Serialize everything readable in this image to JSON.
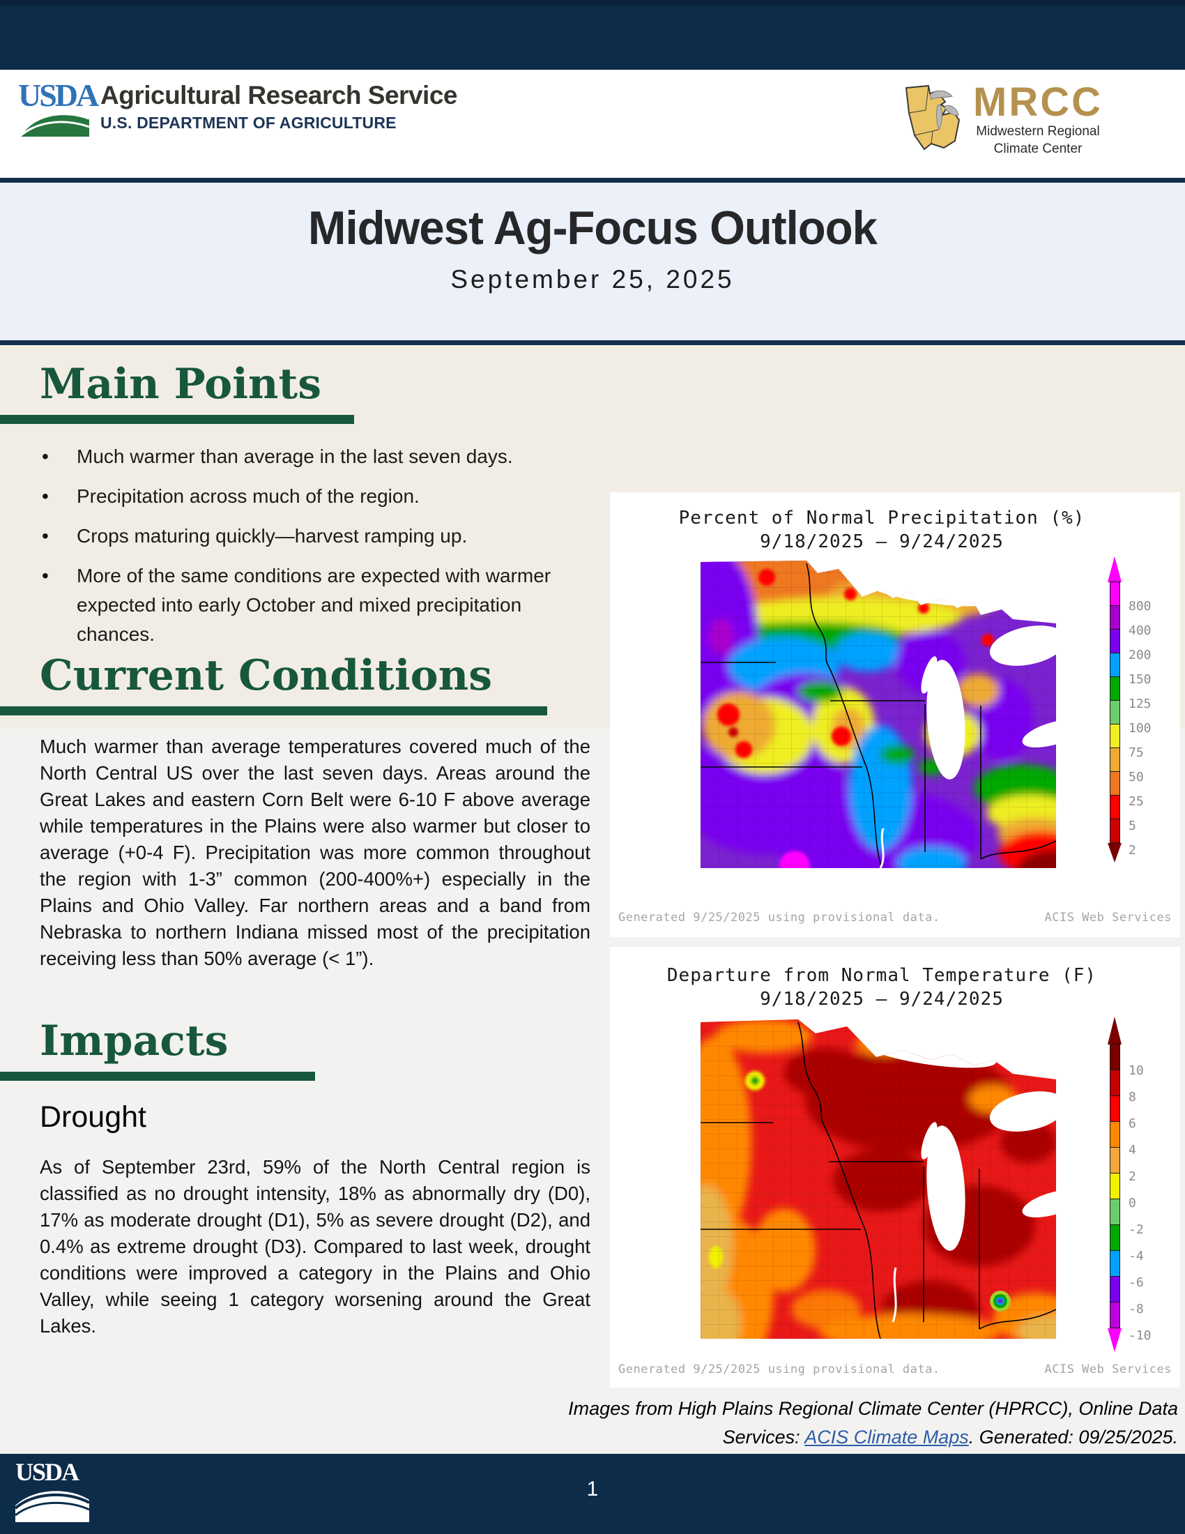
{
  "header": {
    "usda_logo_text": "USDA",
    "agency_name": "Agricultural Research Service",
    "department": "U.S. DEPARTMENT OF AGRICULTURE",
    "mrcc_acronym": "MRCC",
    "mrcc_name_line1": "Midwestern Regional",
    "mrcc_name_line2": "Climate Center"
  },
  "banner": {
    "title": "Midwest Ag-Focus Outlook",
    "date": "September 25, 2025"
  },
  "main_points": {
    "heading": "Main Points",
    "bullets": [
      "Much warmer than average in the last seven days.",
      "Precipitation across much of the region.",
      "Crops maturing quickly—harvest ramping up.",
      "More of the same conditions are expected with warmer expected into early October and mixed precipitation chances."
    ]
  },
  "current_conditions": {
    "heading": "Current Conditions",
    "paragraph": "Much warmer than average temperatures covered much of the North Central US over the last seven days.  Areas around the Great Lakes and eastern Corn Belt were 6-10 F above average while temperatures in the Plains were also warmer but closer to average (+0-4 F).  Precipitation was more common throughout the region with 1-3” common (200-400%+) especially in the Plains and Ohio Valley.  Far northern areas and a band from Nebraska to northern Indiana missed most of the precipitation receiving less than 50% average (< 1”)."
  },
  "impacts": {
    "heading": "Impacts",
    "subheading": "Drought",
    "paragraph": "As of September 23rd, 59% of the North Central region is classified as no drought intensity, 18% as abnormally dry (D0), 17% as moderate drought (D1), 5% as severe drought (D2), and 0.4% as extreme drought (D3). Compared to last week, drought conditions were improved a category in the Plains and Ohio Valley, while seeing 1 category worsening around the Great Lakes."
  },
  "maps": [
    {
      "title": "Percent of Normal Precipitation (%)",
      "date_range": "9/18/2025 – 9/24/2025",
      "generated_note": "Generated 9/25/2025 using provisional data.",
      "source": "ACIS Web Services",
      "legend": {
        "top_arrow_color": "#ff00ff",
        "bottom_arrow_color": "#7a0000",
        "labels": [
          "800",
          "400",
          "200",
          "150",
          "125",
          "100",
          "75",
          "50",
          "25",
          "5",
          "2"
        ],
        "segment_colors": [
          "#ff00ff",
          "#a800cc",
          "#7a00f0",
          "#00a2ff",
          "#00a800",
          "#6ecc6e",
          "#eeee22",
          "#eeaa33",
          "#ee7722",
          "#ff0000",
          "#cc0000"
        ]
      }
    },
    {
      "title": "Departure from Normal Temperature (F)",
      "date_range": "9/18/2025 – 9/24/2025",
      "generated_note": "Generated 9/25/2025 using provisional data.",
      "source": "ACIS Web Services",
      "legend": {
        "top_arrow_color": "#7a0000",
        "bottom_arrow_color": "#ff00ff",
        "labels": [
          "10",
          "8",
          "6",
          "4",
          "2",
          "0",
          "-2",
          "-4",
          "-6",
          "-8",
          "-10"
        ],
        "segment_colors": [
          "#7a0000",
          "#c40000",
          "#ff0000",
          "#ff8800",
          "#f2a83c",
          "#f0f000",
          "#6ecc6e",
          "#00a800",
          "#00a2ff",
          "#7a00f0",
          "#bb00dd"
        ]
      }
    }
  ],
  "caption": {
    "prefix": "Images from High Plains Regional Climate Center (HPRCC), Online Data Services: ",
    "link_text": "ACIS Climate Maps",
    "suffix": ". Generated: 09/25/2025."
  },
  "footer": {
    "usda_logo_text": "USDA",
    "page_number": "1"
  },
  "colors": {
    "navy": "#0d2c4a",
    "banner_bg": "#ecf0f9",
    "beige_bg": "#f2ede4",
    "gray_bg": "#f3f2f1",
    "heading_green": "#17573e",
    "link_blue": "#2b5ca8",
    "mrcc_gold": "#b5914f",
    "usda_blue": "#2f72b8"
  }
}
